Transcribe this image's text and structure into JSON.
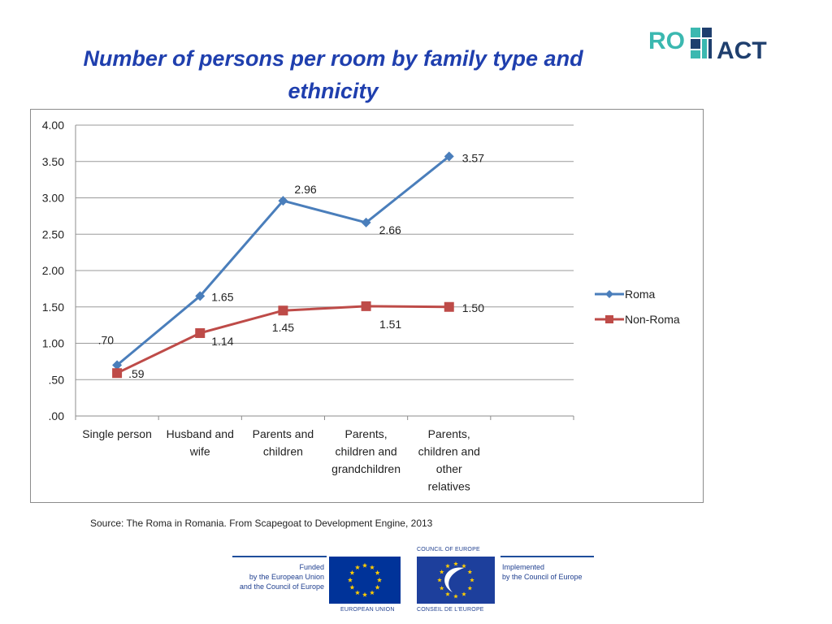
{
  "slide": {
    "title_line1": "Number of persons per room by family type and",
    "title_line2": "ethnicity",
    "source": "Source: The Roma in Romania. From Scapegoat to Development Engine, 2013"
  },
  "brand": {
    "logo_left": "RO",
    "logo_right": "ACT",
    "teal": "#3bb8b0",
    "navy": "#1f3f6e"
  },
  "footer": {
    "funded_lines": [
      "Funded",
      "by the European Union",
      "and the Council of Europe"
    ],
    "implemented_lines": [
      "Implemented",
      "by the Council of Europe"
    ],
    "eu_caption": "EUROPEAN UNION",
    "coe_caption_top": "COUNCIL OF EUROPE",
    "coe_caption_bottom": "CONSEIL DE L'EUROPE"
  },
  "chart_data": {
    "type": "line",
    "title": "Number of persons per room by family type and ethnicity",
    "categories": [
      "Single person",
      "Husband and wife",
      "Parents and children",
      "Parents, children and grandchildren",
      "Parents, children and other relatives"
    ],
    "category_label_lines": [
      [
        "Single person"
      ],
      [
        "Husband and",
        "wife"
      ],
      [
        "Parents and",
        "children"
      ],
      [
        "Parents,",
        "children and",
        "grandchildren"
      ],
      [
        "Parents,",
        "children and",
        "other",
        "relatives"
      ]
    ],
    "series": [
      {
        "name": "Roma",
        "values": [
          0.7,
          1.65,
          2.96,
          2.66,
          3.57
        ],
        "labels": [
          ".70",
          "1.65",
          "2.96",
          "2.66",
          "3.57"
        ],
        "color": "#4a7ebb",
        "marker": "diamond"
      },
      {
        "name": "Non-Roma",
        "values": [
          0.59,
          1.14,
          1.45,
          1.51,
          1.5
        ],
        "labels": [
          ".59",
          "1.14",
          "1.45",
          "1.51",
          "1.50"
        ],
        "color": "#be4b48",
        "marker": "square"
      }
    ],
    "ylim": [
      0,
      4
    ],
    "yticks": [
      0,
      0.5,
      1,
      1.5,
      2,
      2.5,
      3,
      3.5,
      4
    ],
    "ytick_labels": [
      ".00",
      ".50",
      "1.00",
      "1.50",
      "2.00",
      "2.50",
      "3.00",
      "3.50",
      "4.00"
    ],
    "xlabel": "",
    "ylabel": "",
    "grid": true,
    "legend": "right"
  }
}
